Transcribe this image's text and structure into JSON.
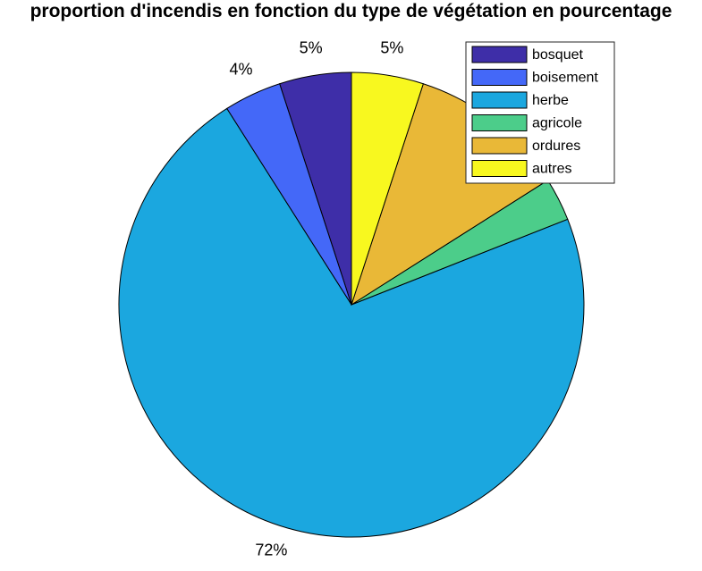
{
  "chart_data": {
    "type": "pie",
    "title": "proportion d'incendis en fonction du type de végétation en pourcentage",
    "categories": [
      "bosquet",
      "boisement",
      "herbe",
      "agricole",
      "ordures",
      "autres"
    ],
    "values": [
      5,
      4,
      72,
      3,
      11,
      5
    ],
    "value_labels": [
      "5%",
      "4%",
      "72%",
      "",
      "",
      "5%"
    ],
    "colors": [
      "#3e2ea8",
      "#4468f8",
      "#1ba7df",
      "#4ccd8a",
      "#e9b837",
      "#f8f81f"
    ],
    "start_angle_deg": 0,
    "direction": "counterclockwise",
    "legend_position": "top-right"
  }
}
